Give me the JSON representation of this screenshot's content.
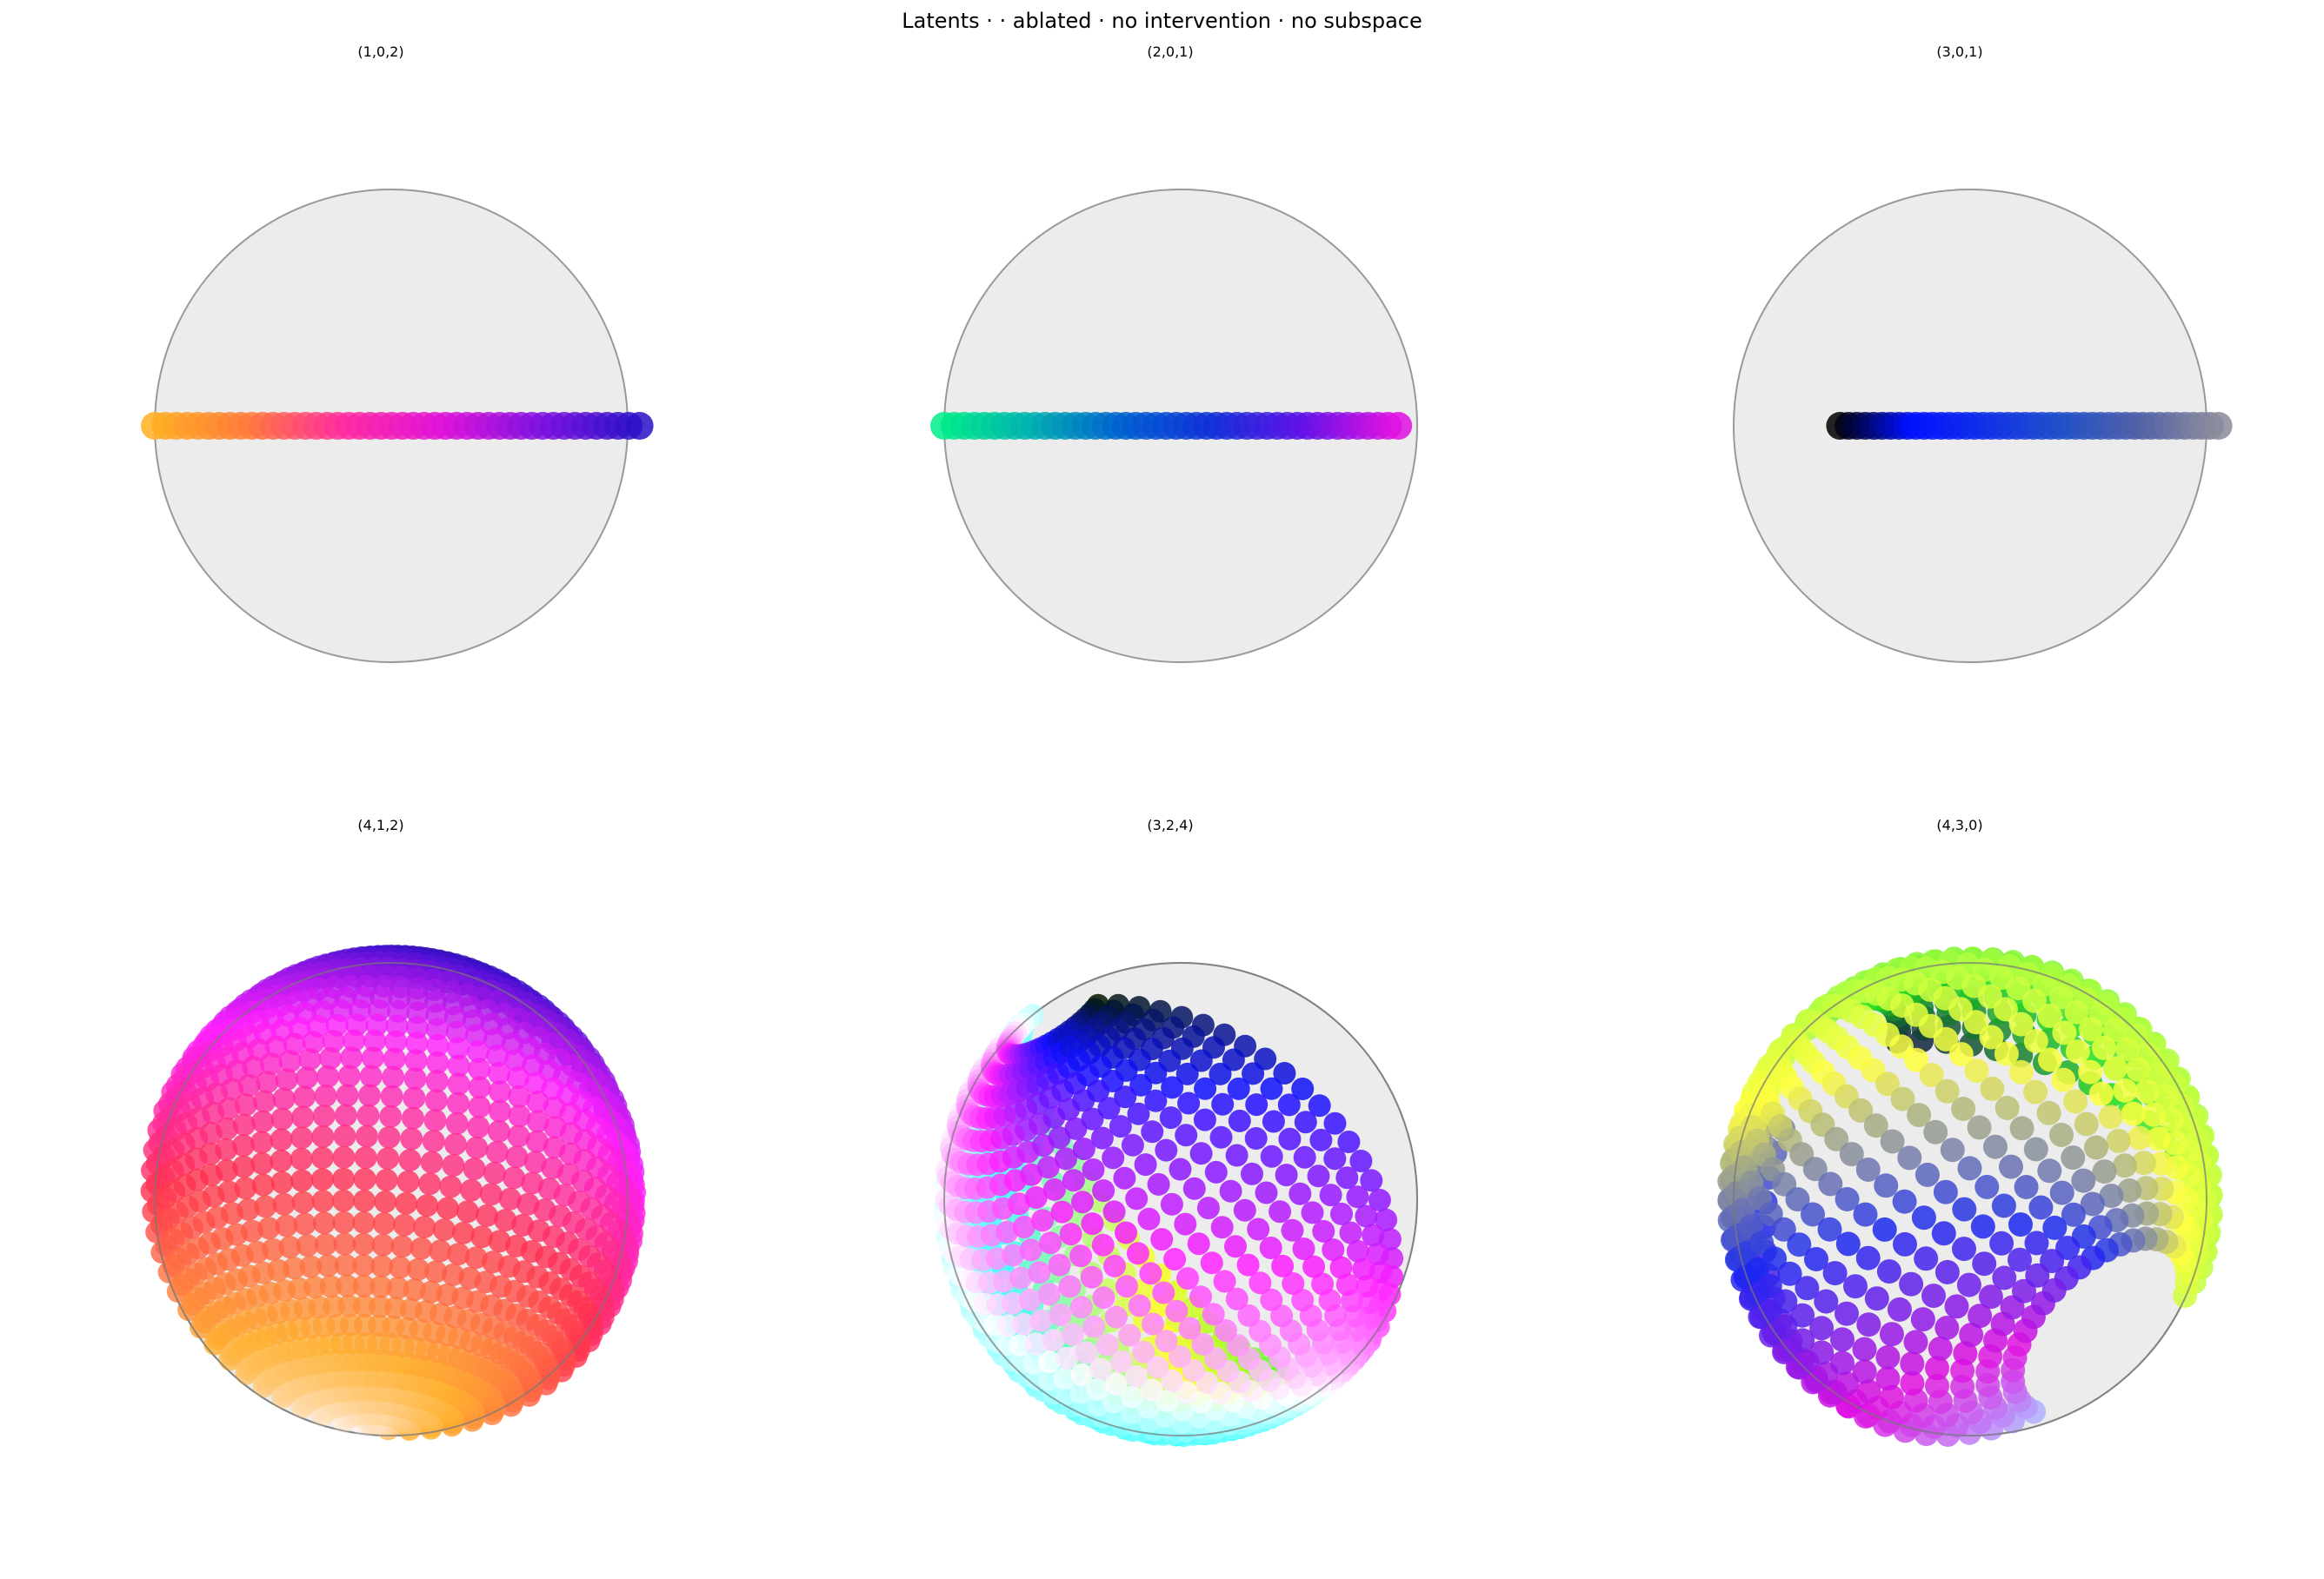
{
  "figure": {
    "title": "Latents ·  · ablated · no intervention · no subspace"
  },
  "chart_data": [
    {
      "type": "scatter",
      "title": "(1,0,2)",
      "description_kind": "points on a line across the disk",
      "gradient": [
        "#ffb020",
        "#ff7a3a",
        "#ff2aa0",
        "#e010d8",
        "#8010e0",
        "#2a10c8"
      ],
      "span": [
        -1.0,
        1.05
      ],
      "level": 0.0
    },
    {
      "type": "scatter",
      "title": "(2,0,1)",
      "gradient": [
        "#00ee88",
        "#00b0b0",
        "#0060d0",
        "#1030d8",
        "#6010e8",
        "#e010e0"
      ],
      "span": [
        -1.0,
        0.92
      ],
      "level": 0.0
    },
    {
      "type": "scatter",
      "title": "(3,0,1)",
      "gradient": [
        "#000000",
        "#0010ff",
        "#1030e8",
        "#2050c8",
        "#5060a8",
        "#8a8a9a"
      ],
      "span": [
        -0.55,
        1.05
      ],
      "level": 0.0
    },
    {
      "type": "scatter",
      "title": "(4,1,2)",
      "gradient": [
        "#0a0a50",
        "#4010d0",
        "#ff20ff",
        "#ff3050",
        "#ffb030",
        "#fff8ff"
      ]
    },
    {
      "type": "scatter",
      "title": "(3,2,4)",
      "gradient": [
        "#001800",
        "#1010ff",
        "#ff20ff",
        "#ffffff",
        "#30ffff",
        "#ffff20",
        "#20ff20"
      ]
    },
    {
      "type": "scatter",
      "title": "(4,3,0)",
      "gradient": [
        "#101040",
        "#20e020",
        "#b0ff40",
        "#ffff40",
        "#1a28f0",
        "#e010e0",
        "#b0b0ff"
      ]
    }
  ]
}
